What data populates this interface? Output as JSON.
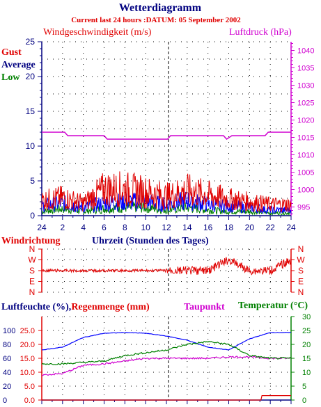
{
  "colors": {
    "navy": "#000080",
    "red": "#e00000",
    "blue": "#0000ff",
    "green": "#008000",
    "magenta": "#d000d0",
    "black": "#000000"
  },
  "header": {
    "title": "Wetterdiagramm",
    "subtitle": "Current last 24 hours :DATUM: 05 September 2002"
  },
  "wind_panel": {
    "left_title": "Windgeschwindigkeit (m/s)",
    "right_title": "Luftdruck (hPa)",
    "legend": [
      "Gust",
      "Average",
      "Low"
    ],
    "y_ticks": [
      "0",
      "5",
      "10",
      "15",
      "20",
      "25"
    ],
    "y2_ticks": [
      "995",
      "1000",
      "1005",
      "1010",
      "1015",
      "1020",
      "1025",
      "1030",
      "1035",
      "1040"
    ],
    "x_ticks": [
      "24",
      "2",
      "4",
      "6",
      "8",
      "10",
      "12",
      "14",
      "16",
      "18",
      "20",
      "22",
      "24"
    ]
  },
  "direction_panel": {
    "left_title": "Windrichtung",
    "center_title": "Uhrzeit (Stunden des Tages)",
    "dir_labels": [
      "N",
      "W",
      "S",
      "E",
      "N"
    ]
  },
  "humidity_panel": {
    "left_title_a": "Luftfeuchte (%),",
    "left_title_b": "Regenmenge (mm)",
    "dew_title": "Taupunkt",
    "temp_title": "Temperatur (",
    "temp_unit": "°C)",
    "y_pct_ticks": [
      "0",
      "20",
      "40",
      "60",
      "80",
      "100"
    ],
    "y_mm_ticks": [
      "0.0",
      "5.0",
      "10.0",
      "15.0",
      "20.0",
      "25.0"
    ],
    "y_temp_ticks": [
      "0",
      "5",
      "10",
      "15",
      "20",
      "25",
      "30"
    ]
  },
  "chart_data": [
    {
      "type": "line",
      "title": "Windgeschwindigkeit (m/s)",
      "x": [
        0,
        2,
        4,
        6,
        8,
        10,
        12,
        14,
        16,
        18,
        20,
        22,
        24
      ],
      "ylim": [
        0,
        25
      ],
      "y2lim": [
        992.5,
        1042.5
      ],
      "series": [
        {
          "name": "Gust",
          "color": "#e00000",
          "values": [
            2.2,
            2.6,
            1.8,
            3.8,
            3.8,
            3.4,
            2.8,
            3.6,
            3.0,
            2.4,
            2.0,
            1.6,
            1.6
          ]
        },
        {
          "name": "Average",
          "color": "#0000ff",
          "values": [
            1.4,
            1.8,
            1.2,
            1.8,
            2.0,
            2.0,
            1.6,
            2.2,
            1.6,
            1.4,
            1.2,
            0.8,
            0.8
          ]
        },
        {
          "name": "Low",
          "color": "#008000",
          "values": [
            0.6,
            1.0,
            0.6,
            1.0,
            1.2,
            1.2,
            0.8,
            1.2,
            0.8,
            0.6,
            0.6,
            0.4,
            0.4
          ]
        },
        {
          "name": "Luftdruck (hPa)",
          "axis": "right",
          "color": "#d000d0",
          "points": [
            [
              0,
              1016.5
            ],
            [
              2.2,
              1016.5
            ],
            [
              2.5,
              1015.5
            ],
            [
              6.0,
              1015.5
            ],
            [
              6.3,
              1014.5
            ],
            [
              12.1,
              1014.5
            ],
            [
              12.4,
              1015.5
            ],
            [
              17.5,
              1015.5
            ],
            [
              17.8,
              1014.5
            ],
            [
              18.3,
              1015.5
            ],
            [
              21.5,
              1015.5
            ],
            [
              21.8,
              1016.5
            ],
            [
              24,
              1016.5
            ]
          ]
        }
      ]
    },
    {
      "type": "line",
      "title": "Windrichtung",
      "x": [
        0,
        4,
        8,
        12,
        16,
        18,
        20,
        22,
        24
      ],
      "y_categories": [
        "N",
        "E",
        "S",
        "W",
        "N"
      ],
      "series": [
        {
          "name": "Windrichtung",
          "color": "#e00000",
          "values": [
            "S",
            "S",
            "S",
            "S",
            "S",
            "W",
            "S",
            "S",
            "W"
          ]
        }
      ]
    },
    {
      "type": "line",
      "title": "Luftfeuchte / Regenmenge / Taupunkt / Temperatur",
      "x": [
        0,
        2,
        4,
        6,
        8,
        10,
        12,
        14,
        16,
        18,
        20,
        22,
        24
      ],
      "ylim": [
        0,
        25
      ],
      "series": [
        {
          "name": "Luftfeuchte (%)",
          "color": "#0000ff",
          "unit": "%",
          "values": [
            72,
            76,
            90,
            96,
            97,
            96,
            92,
            86,
            76,
            72,
            88,
            97,
            97
          ]
        },
        {
          "name": "Regenmenge (mm)",
          "color": "#e00000",
          "unit": "mm",
          "values": [
            0,
            0,
            0,
            0,
            0,
            0,
            0,
            0,
            0,
            0,
            0,
            1.6,
            1.6
          ]
        },
        {
          "name": "Taupunkt",
          "color": "#d000d0",
          "unit": "°C",
          "values": [
            9,
            9.5,
            12.5,
            13,
            14,
            15,
            15,
            15,
            15,
            15.5,
            15.5,
            15,
            15
          ]
        },
        {
          "name": "Temperatur (°C)",
          "color": "#008000",
          "unit": "°C",
          "values": [
            13,
            13,
            13.5,
            14,
            16,
            17,
            18,
            20,
            21,
            20,
            16,
            15,
            15
          ]
        }
      ]
    }
  ]
}
